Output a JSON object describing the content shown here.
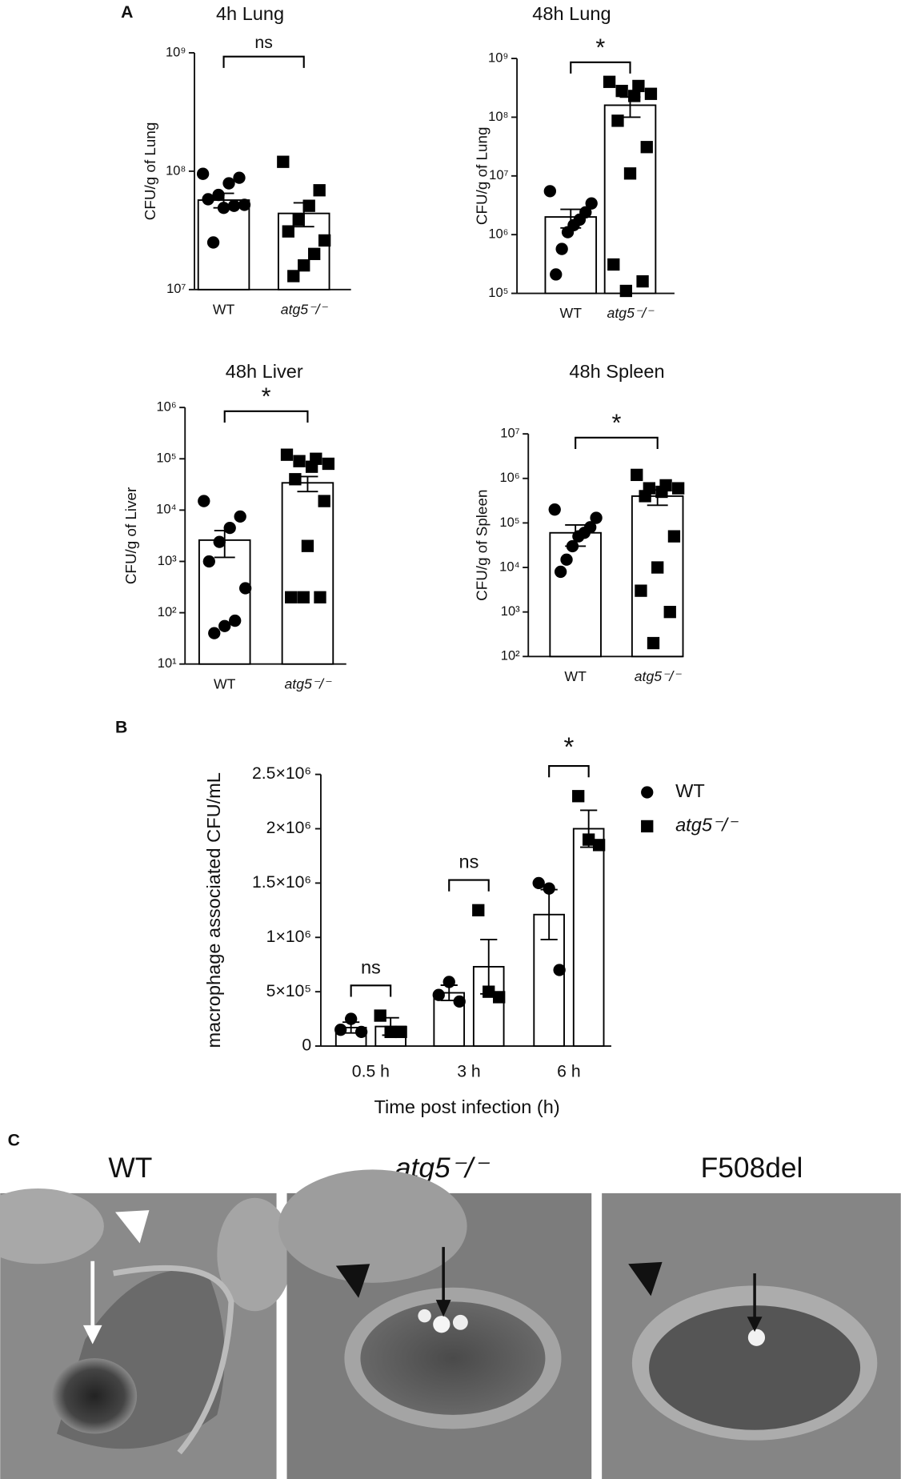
{
  "panel_labels": [
    "A",
    "B",
    "C"
  ],
  "chart_data": [
    {
      "type": "bar_scatter",
      "title": "4h Lung",
      "y_label": "CFU/g of Lung",
      "log_scale": true,
      "categories": [
        "WT",
        "atg5⁻/⁻"
      ],
      "marker_shapes": [
        "circle",
        "square"
      ],
      "color": "#000000",
      "bar_fill": "#ffffff",
      "means": [
        57000000,
        44000000
      ],
      "sem": [
        8000000,
        10000000
      ],
      "points": [
        [
          95000000,
          88000000,
          79000000,
          63000000,
          58000000,
          52000000,
          51000000,
          49000000,
          25000000
        ],
        [
          120000000,
          69000000,
          51000000,
          39000000,
          31000000,
          26000000,
          20000000,
          16000000,
          13000000
        ]
      ],
      "ylim": [
        10000000,
        1000000000
      ],
      "yticks": [
        {
          "value": 10000000,
          "label": "10⁷"
        },
        {
          "value": 100000000,
          "label": "10⁸"
        },
        {
          "value": 1000000000,
          "label": "10⁹"
        }
      ],
      "annotation": "ns"
    },
    {
      "type": "bar_scatter",
      "title": "48h Lung",
      "y_label": "CFU/g of Lung",
      "log_scale": true,
      "categories": [
        "WT",
        "atg5⁻/⁻"
      ],
      "marker_shapes": [
        "circle",
        "square"
      ],
      "color": "#000000",
      "bar_fill": "#ffffff",
      "means": [
        2000000,
        160000000
      ],
      "sem": [
        700000,
        60000000
      ],
      "points": [
        [
          5500000,
          3400000,
          2400000,
          1800000,
          1450000,
          1100000,
          570000,
          210000
        ],
        [
          400000000,
          340000000,
          280000000,
          250000000,
          230000000,
          87000000,
          31000000,
          11000000,
          310000,
          160000,
          110000
        ]
      ],
      "ylim": [
        100000,
        1000000000
      ],
      "yticks": [
        {
          "value": 100000,
          "label": "10⁵"
        },
        {
          "value": 1000000,
          "label": "10⁶"
        },
        {
          "value": 10000000,
          "label": "10⁷"
        },
        {
          "value": 100000000,
          "label": "10⁸"
        },
        {
          "value": 1000000000,
          "label": "10⁹"
        }
      ],
      "annotation": "*"
    },
    {
      "type": "bar_scatter",
      "title": "48h Liver",
      "y_label": "CFU/g of Liver",
      "log_scale": true,
      "categories": [
        "WT",
        "atg5⁻/⁻"
      ],
      "marker_shapes": [
        "circle",
        "square"
      ],
      "color": "#000000",
      "bar_fill": "#ffffff",
      "means": [
        2600,
        34000
      ],
      "sem": [
        1400,
        11000
      ],
      "points": [
        [
          15000,
          7500,
          4500,
          2400,
          1000,
          300,
          70,
          55,
          40
        ],
        [
          120000,
          100000,
          90000,
          80000,
          70000,
          40000,
          15000,
          2000,
          200,
          200,
          200
        ]
      ],
      "ylim": [
        10,
        1000000
      ],
      "yticks": [
        {
          "value": 10,
          "label": "10¹"
        },
        {
          "value": 100,
          "label": "10²"
        },
        {
          "value": 1000,
          "label": "10³"
        },
        {
          "value": 10000,
          "label": "10⁴"
        },
        {
          "value": 100000,
          "label": "10⁵"
        },
        {
          "value": 1000000,
          "label": "10⁶"
        }
      ],
      "annotation": "*"
    },
    {
      "type": "bar_scatter",
      "title": "48h Spleen",
      "y_label": "CFU/g of Spleen",
      "log_scale": true,
      "categories": [
        "WT",
        "atg5⁻/⁻"
      ],
      "marker_shapes": [
        "circle",
        "square"
      ],
      "color": "#000000",
      "bar_fill": "#ffffff",
      "means": [
        60000,
        400000
      ],
      "sem": [
        30000,
        150000
      ],
      "points": [
        [
          200000,
          130000,
          80000,
          60000,
          50000,
          30000,
          15000,
          8000
        ],
        [
          1200000,
          700000,
          600000,
          600000,
          500000,
          400000,
          50000,
          10000,
          3000,
          1000,
          200
        ]
      ],
      "ylim": [
        100,
        10000000
      ],
      "yticks": [
        {
          "value": 100,
          "label": "10²"
        },
        {
          "value": 1000,
          "label": "10³"
        },
        {
          "value": 10000,
          "label": "10⁴"
        },
        {
          "value": 100000,
          "label": "10⁵"
        },
        {
          "value": 1000000,
          "label": "10⁶"
        },
        {
          "value": 10000000,
          "label": "10⁷"
        }
      ],
      "annotation": "*"
    },
    {
      "type": "grouped_bar_scatter",
      "y_label": "macrophage associated CFU/mL",
      "x_label": "Time post infection (h)",
      "categories": [
        "0.5 h",
        "3 h",
        "6 h"
      ],
      "color": "#000000",
      "bar_fill": "#ffffff",
      "series": [
        {
          "name": "WT",
          "marker": "circle",
          "means": [
            170000,
            490000,
            1210000
          ],
          "sem": [
            50000,
            70000,
            230000
          ],
          "points": [
            [
              150000,
              250000,
              130000
            ],
            [
              470000,
              590000,
              410000
            ],
            [
              1500000,
              1450000,
              700000
            ]
          ]
        },
        {
          "name": "atg5⁻/⁻",
          "marker": "square",
          "means": [
            180000,
            730000,
            2000000
          ],
          "sem": [
            80000,
            250000,
            170000
          ],
          "points": [
            [
              280000,
              130000,
              130000
            ],
            [
              1250000,
              500000,
              450000
            ],
            [
              2300000,
              1900000,
              1850000
            ]
          ]
        }
      ],
      "ylim": [
        0,
        2500000
      ],
      "yticks": [
        0,
        {
          "value": 500000,
          "label": "5×10⁵"
        },
        {
          "value": 1000000,
          "label": "1×10⁶"
        },
        {
          "value": 1500000,
          "label": "1.5×10⁶"
        },
        {
          "value": 2000000,
          "label": "2×10⁶"
        },
        {
          "value": 2500000,
          "label": "2.5×10⁶"
        }
      ],
      "annotations": [
        "ns",
        "ns",
        "*"
      ],
      "legend": "right"
    }
  ],
  "images": {
    "titles": [
      "WT",
      "atg5⁻/⁻",
      "F508del"
    ]
  }
}
